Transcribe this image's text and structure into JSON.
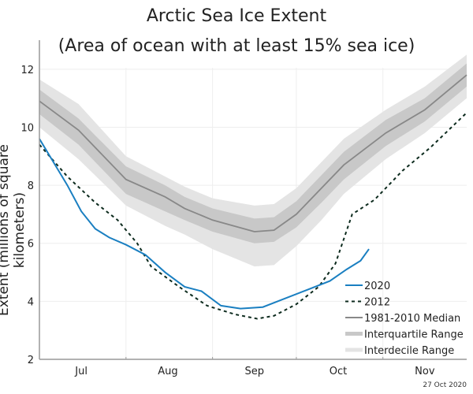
{
  "chart_data": {
    "type": "line",
    "title": "Arctic Sea Ice Extent",
    "subtitle": "(Area of ocean with at least 15% sea ice)",
    "xlabel": "",
    "ylabel": "Extent (millions of square kilometers)",
    "x_unit": "days since Jul 1",
    "xlim": [
      0,
      153
    ],
    "ylim": [
      2,
      13
    ],
    "yticks": [
      2,
      4,
      6,
      8,
      10,
      12
    ],
    "month_labels": [
      {
        "label": "Jul",
        "day": 15
      },
      {
        "label": "Aug",
        "day": 46
      },
      {
        "label": "Sep",
        "day": 77
      },
      {
        "label": "Oct",
        "day": 107
      },
      {
        "label": "Nov",
        "day": 138
      }
    ],
    "month_boundaries": [
      31,
      62,
      92,
      123
    ],
    "grid": true,
    "legend_position": "bottom-right",
    "date_stamp": "27 Oct 2020",
    "colors": {
      "y2020": "#1a7fc1",
      "y2012": "#0d2b1e",
      "median": "#888888",
      "iqr": "#c8c8c8",
      "idr": "#e4e4e4"
    },
    "median": {
      "name": "1981-2010 Median",
      "x": [
        0,
        14,
        31,
        45,
        52,
        62,
        77,
        84,
        92,
        101,
        109,
        124,
        138,
        153
      ],
      "y": [
        10.9,
        9.9,
        8.2,
        7.6,
        7.2,
        6.8,
        6.4,
        6.45,
        7.0,
        7.9,
        8.7,
        9.8,
        10.6,
        11.8
      ]
    },
    "interquartile": {
      "name": "Interquartile Range",
      "x": [
        0,
        14,
        31,
        45,
        52,
        62,
        77,
        84,
        92,
        101,
        109,
        124,
        138,
        153
      ],
      "lower": [
        10.45,
        9.4,
        7.7,
        7.1,
        6.8,
        6.4,
        6.0,
        6.05,
        6.55,
        7.4,
        8.2,
        9.35,
        10.2,
        11.4
      ],
      "upper": [
        11.3,
        10.3,
        8.65,
        8.0,
        7.6,
        7.2,
        6.85,
        6.9,
        7.45,
        8.35,
        9.15,
        10.25,
        11.0,
        12.2
      ]
    },
    "interdecile": {
      "name": "Interdecile Range",
      "x": [
        0,
        14,
        31,
        45,
        52,
        62,
        77,
        84,
        92,
        101,
        109,
        124,
        138,
        153
      ],
      "lower": [
        10.0,
        8.9,
        7.3,
        6.6,
        6.3,
        5.8,
        5.2,
        5.25,
        5.9,
        6.8,
        7.7,
        8.9,
        9.8,
        11.0
      ],
      "upper": [
        11.65,
        10.8,
        9.0,
        8.3,
        7.95,
        7.55,
        7.3,
        7.35,
        7.9,
        8.8,
        9.6,
        10.6,
        11.4,
        12.5
      ]
    },
    "series": [
      {
        "name": "2020",
        "x": [
          0,
          5,
          10,
          15,
          20,
          25,
          31,
          38,
          45,
          52,
          58,
          65,
          72,
          80,
          88,
          96,
          104,
          110,
          115,
          118
        ],
        "y": [
          9.6,
          8.8,
          8.0,
          7.1,
          6.5,
          6.2,
          5.95,
          5.6,
          5.0,
          4.5,
          4.35,
          3.85,
          3.75,
          3.8,
          4.1,
          4.4,
          4.7,
          5.1,
          5.4,
          5.8
        ]
      },
      {
        "name": "2012",
        "x": [
          0,
          10,
          20,
          28,
          35,
          40,
          50,
          60,
          70,
          78,
          84,
          92,
          100,
          106,
          112,
          120,
          130,
          140,
          153
        ],
        "y": [
          9.4,
          8.3,
          7.4,
          6.8,
          6.0,
          5.2,
          4.5,
          3.85,
          3.55,
          3.4,
          3.5,
          3.9,
          4.5,
          5.3,
          7.0,
          7.5,
          8.5,
          9.3,
          10.5
        ]
      }
    ]
  }
}
